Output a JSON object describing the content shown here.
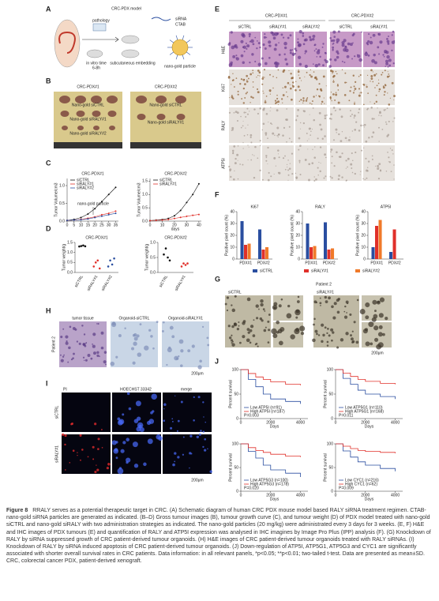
{
  "panel_labels": [
    "A",
    "B",
    "C",
    "D",
    "E",
    "F",
    "G",
    "H",
    "I",
    "J"
  ],
  "panel_a": {
    "title": "CRC-PDX model",
    "labels": [
      "pathology",
      "siRNA",
      "CTAB",
      "in vitro time",
      "6-8h",
      "subcutaneous embedding",
      "nano-gold particle"
    ]
  },
  "panel_b": {
    "titles": [
      "CRC-PDX#1",
      "CRC-PDX#2"
    ],
    "labels": [
      "Nano-gold siCTRL",
      "Nano-gold siRALY#1",
      "Nano-gold siRALY#2"
    ]
  },
  "panel_c": {
    "ylabel": "Tumor Volume/cm3",
    "xlabel": "days",
    "annotation": "nano-gold particle",
    "charts": [
      {
        "type": "line",
        "title": "CRC-PDX#1",
        "x": [
          0,
          5,
          10,
          15,
          20,
          25,
          30,
          35
        ],
        "xlim": [
          0,
          37
        ],
        "xticks": [
          0,
          5,
          10,
          15,
          20,
          25,
          30,
          35
        ],
        "ylim": [
          0,
          1.2
        ],
        "yticks": [
          {
            "value": 0,
            "label": "0.0"
          },
          {
            "value": 0.5,
            "label": "0.5"
          },
          {
            "value": 1,
            "label": "1.0"
          }
        ],
        "series": [
          {
            "name": "siCTRL",
            "color": "#111111",
            "values": [
              0.02,
              0.05,
              0.1,
              0.2,
              0.35,
              0.55,
              0.75,
              0.95
            ]
          },
          {
            "name": "siRALY#1",
            "color": "#e0302a",
            "values": [
              0.02,
              0.03,
              0.05,
              0.08,
              0.12,
              0.18,
              0.22,
              0.28
            ]
          },
          {
            "name": "siRALY#2",
            "color": "#2a4ea0",
            "values": [
              0.02,
              0.03,
              0.04,
              0.06,
              0.1,
              0.14,
              0.18,
              0.22
            ]
          }
        ]
      },
      {
        "type": "line",
        "title": "CRC-PDX#2",
        "x": [
          0,
          5,
          10,
          15,
          20,
          25,
          30,
          35,
          40
        ],
        "xlim": [
          0,
          42
        ],
        "xticks": [
          0,
          10,
          20,
          30,
          40
        ],
        "ylim": [
          0,
          1.6
        ],
        "yticks": [
          {
            "value": 0,
            "label": "0.0"
          },
          {
            "value": 0.5,
            "label": "0.5"
          },
          {
            "value": 1,
            "label": "1.0"
          },
          {
            "value": 1.5,
            "label": "1.5"
          }
        ],
        "series": [
          {
            "name": "siCTRL",
            "color": "#111111",
            "values": [
              0.02,
              0.04,
              0.06,
              0.1,
              0.2,
              0.4,
              0.7,
              1.0,
              1.4
            ]
          },
          {
            "name": "siRALY#1",
            "color": "#e0302a",
            "values": [
              0.02,
              0.03,
              0.04,
              0.06,
              0.1,
              0.14,
              0.18,
              0.22,
              0.25
            ]
          }
        ]
      }
    ]
  },
  "panel_d": {
    "ylabel": "Tumor weight/g",
    "charts": [
      {
        "type": "dot",
        "title": "CRC-PDX#1",
        "ylim": [
          0,
          1.5
        ],
        "yticks": [
          {
            "value": 0,
            "label": "0.0"
          },
          {
            "value": 0.5,
            "label": "0.5"
          },
          {
            "value": 1,
            "label": "1.0"
          },
          {
            "value": 1.5,
            "label": "1.5"
          }
        ],
        "categories": [
          "siCTRL",
          "siRALY#1",
          "siRALY#2"
        ],
        "colors": [
          "#111111",
          "#e0302a",
          "#2a4ea0"
        ],
        "values": [
          [
            1.3,
            1.32,
            1.35,
            1.31
          ],
          [
            0.3,
            0.5,
            0.6,
            0.2
          ],
          [
            0.3,
            0.6,
            0.4,
            0.7
          ]
        ]
      },
      {
        "type": "dot",
        "title": "CRC-PDX#2",
        "ylim": [
          0,
          1
        ],
        "yticks": [
          {
            "value": 0,
            "label": "0.0"
          },
          {
            "value": 0.5,
            "label": "0.5"
          },
          {
            "value": 1,
            "label": "1.0"
          }
        ],
        "categories": [
          "siCTRL",
          "siRALY#1"
        ],
        "colors": [
          "#111111",
          "#e0302a"
        ],
        "values": [
          [
            0.6,
            0.8,
            0.5,
            0.4
          ],
          [
            0.2,
            0.3,
            0.25,
            0.3
          ]
        ]
      }
    ]
  },
  "panel_e": {
    "groups": [
      "CRC-PDX#1",
      "CRC-PDX#2"
    ],
    "columns": [
      "siCTRL",
      "siRALY#1",
      "siRALY#2",
      "siCTRL",
      "siRALY#1"
    ],
    "rows": [
      "H&E",
      "Ki67",
      "RALY",
      "ATP5I"
    ]
  },
  "panel_f": {
    "ylabel": "Positive pixel count (%)",
    "legend": [
      {
        "name": "siCTRL",
        "color": "#2a4ea0"
      },
      {
        "name": "siRALY#1",
        "color": "#e0302a"
      },
      {
        "name": "siRALY#2",
        "color": "#f07a2a"
      }
    ],
    "charts": [
      {
        "type": "bar",
        "title": "Ki67",
        "categories": [
          "PDX#1",
          "PDX#2"
        ],
        "ylim": [
          0,
          40
        ],
        "yticks": [
          0,
          10,
          20,
          30,
          40
        ],
        "values": [
          [
            32,
            25
          ],
          [
            12,
            8
          ],
          [
            13,
            10
          ]
        ]
      },
      {
        "type": "bar",
        "title": "RALY",
        "categories": [
          "PDX#1",
          "PDX#2"
        ],
        "ylim": [
          0,
          40
        ],
        "yticks": [
          0,
          10,
          20,
          30,
          40
        ],
        "values": [
          [
            30,
            31
          ],
          [
            10,
            8
          ],
          [
            11,
            9
          ]
        ]
      },
      {
        "type": "bar",
        "title": "ATP5I",
        "categories": [
          "PDX#1",
          "PDX#2"
        ],
        "ylim": [
          0,
          40
        ],
        "yticks": [
          0,
          10,
          20,
          30,
          40
        ],
        "values": [
          [
            10,
            6
          ],
          [
            28,
            25
          ],
          [
            33,
            null
          ]
        ]
      }
    ]
  },
  "panel_g": {
    "title": "Patient 2",
    "columns": [
      "siCTRL",
      "siRALY#1"
    ],
    "scale": "200μm"
  },
  "panel_h": {
    "row": "Patient 2",
    "columns": [
      "tumor tissue",
      "Organoid-siCTRL",
      "Organoid-siRALY#1"
    ],
    "scale": "200μm"
  },
  "panel_i": {
    "columns": [
      "PI",
      "HOECHST 33342",
      "merge"
    ],
    "rows": [
      "siCTRL",
      "siRALY#1"
    ],
    "scale": "200μm"
  },
  "panel_j": {
    "ylabel": "Percent survival",
    "xlabel": "Days",
    "charts": [
      {
        "type": "step",
        "xlim": [
          0,
          4500
        ],
        "xticks": [
          0,
          2000,
          4000
        ],
        "ylim": [
          0,
          100
        ],
        "yticks": [
          0,
          50,
          100
        ],
        "p": "P=0.003",
        "series": [
          {
            "name": "Low ATP5I (n=91)",
            "color": "#2a4ea0",
            "x": [
              0,
              500,
              1000,
              1500,
              2000,
              3000,
              4000
            ],
            "values": [
              100,
              80,
              65,
              50,
              40,
              35,
              30
            ]
          },
          {
            "name": "High ATP5I (n=187)",
            "color": "#e0302a",
            "x": [
              0,
              500,
              1000,
              1500,
              2000,
              3000,
              4000
            ],
            "values": [
              100,
              92,
              85,
              80,
              75,
              70,
              68
            ]
          }
        ]
      },
      {
        "type": "step",
        "xlim": [
          0,
          4500
        ],
        "xticks": [
          0,
          2000,
          4000
        ],
        "ylim": [
          0,
          100
        ],
        "yticks": [
          0,
          50,
          100
        ],
        "p": "P=0.011",
        "series": [
          {
            "name": "Low ATP5G1 (n=110)",
            "color": "#2a4ea0",
            "x": [
              0,
              500,
              1000,
              1500,
              2000,
              3000,
              4000
            ],
            "values": [
              100,
              82,
              70,
              58,
              50,
              45,
              40
            ]
          },
          {
            "name": "High ATP5G1 (n=168)",
            "color": "#e0302a",
            "x": [
              0,
              500,
              1000,
              1500,
              2000,
              3000,
              4000
            ],
            "values": [
              100,
              93,
              86,
              80,
              76,
              72,
              70
            ]
          }
        ]
      },
      {
        "type": "step",
        "xlim": [
          0,
          4500
        ],
        "xticks": [
          0,
          2000,
          4000
        ],
        "ylim": [
          0,
          100
        ],
        "yticks": [
          0,
          50,
          100
        ],
        "p": "P=0.020",
        "series": [
          {
            "name": "Low ATP5G3 (n=100)",
            "color": "#2a4ea0",
            "x": [
              0,
              500,
              1000,
              1500,
              2000,
              3000,
              4000
            ],
            "values": [
              100,
              84,
              70,
              55,
              45,
              38,
              30
            ]
          },
          {
            "name": "High ATP5G3 (n=178)",
            "color": "#e0302a",
            "x": [
              0,
              500,
              1000,
              1500,
              2000,
              3000,
              4000
            ],
            "values": [
              100,
              92,
              86,
              82,
              78,
              74,
              72
            ]
          }
        ]
      },
      {
        "type": "step",
        "xlim": [
          0,
          4500
        ],
        "xticks": [
          0,
          2000,
          4000
        ],
        "ylim": [
          0,
          100
        ],
        "yticks": [
          0,
          50,
          100
        ],
        "p": "P=0.009",
        "series": [
          {
            "name": "Low CYC1 (n=216)",
            "color": "#2a4ea0",
            "x": [
              0,
              500,
              1000,
              1500,
              2000,
              3000,
              4000
            ],
            "values": [
              100,
              85,
              72,
              62,
              55,
              48,
              42
            ]
          },
          {
            "name": "High CYC1 (n=62)",
            "color": "#e0302a",
            "x": [
              0,
              500,
              1000,
              1500,
              2000,
              3000,
              4000
            ],
            "values": [
              100,
              95,
              90,
              86,
              84,
              82,
              80
            ]
          }
        ]
      }
    ]
  },
  "caption": {
    "label": "Figure 8",
    "text": "RRALY serves as a potential therapeutic target in CRC. (A) Schematic diagram of human CRC PDX mouse model based RALY siRNA treatment regimen. CTAB-nano-gold siRNA particles are generated as indicated. (B–D) Gross tumour images (B), tumour growth curve (C), and tumour weight (D) of PDX model treated with nano-gold siCTRL and nano-gold siRALY with two administration strategies as indicated. The nano-gold particles (20 mg/kg) were administrated every 3 days for 3 weeks. (E, F) H&E and IHC images of PDX tumours (E) and quantification of RALY and ATP5I expression was analysed in IHC imagines by Image Pro Plus (IPP) analysis (F). (G) Knockdown of RALY by siRNA suppressed growth of CRC patient-derived tumour organoids. (H) H&E images of CRC patient-derived tumour organoids treated with RALY siRNAs. (I) Knockdown of RALY by siRNA induced apoptosis of CRC patient-derived tumour organoids. (J) Down-regulation of ATP5I, ATP5G1, ATP5G3 and CYC1 are significantly associated with shorter overall survival rates in CRC patients. Data information: in all relevant panels, *p<0.05; **p<0.01; two-tailed t-test. Data are presented as mean±SD. CRC, colorectal cancer PDX, patient-derived xenograft."
  }
}
